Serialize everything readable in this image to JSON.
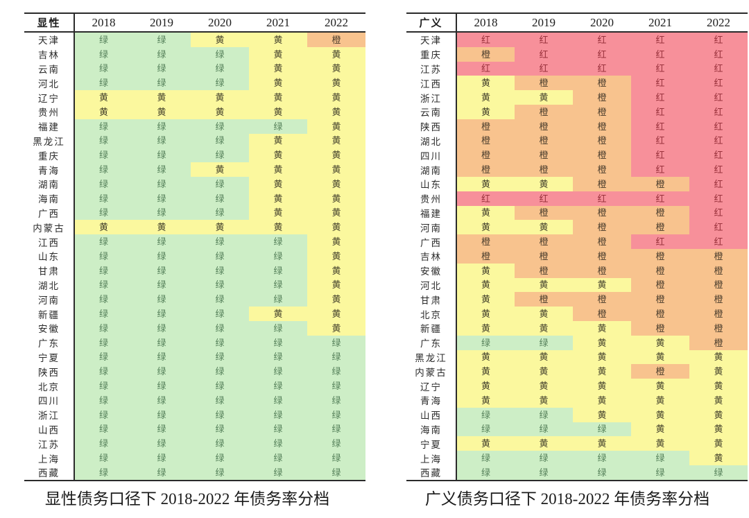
{
  "captions": {
    "left": "显性债务口径下 2018-2022 年债务率分档",
    "right": "广义债务口径下 2018-2022 年债务率分档"
  },
  "value_styles": {
    "绿": {
      "name": "green",
      "bg": "#cdeec6",
      "text": "#55805a"
    },
    "黄": {
      "name": "yellow",
      "bg": "#fbf89e",
      "text": "#45422c"
    },
    "橙": {
      "name": "orange",
      "bg": "#f8c38e",
      "text": "#4a3d2d"
    },
    "红": {
      "name": "red",
      "bg": "#f7909a",
      "text": "#9a323c"
    }
  },
  "chart_data": [
    {
      "type": "heatmap",
      "title": "显性债务口径下 2018-2022 年债务率分档",
      "corner_label": "显性",
      "columns": [
        "2018",
        "2019",
        "2020",
        "2021",
        "2022"
      ],
      "legend_values": [
        "绿",
        "黄",
        "橙",
        "红"
      ],
      "rows": [
        {
          "name": "天津",
          "values": [
            "绿",
            "绿",
            "黄",
            "黄",
            "橙"
          ]
        },
        {
          "name": "吉林",
          "values": [
            "绿",
            "绿",
            "绿",
            "黄",
            "黄"
          ]
        },
        {
          "name": "云南",
          "values": [
            "绿",
            "绿",
            "绿",
            "黄",
            "黄"
          ]
        },
        {
          "name": "河北",
          "values": [
            "绿",
            "绿",
            "绿",
            "黄",
            "黄"
          ]
        },
        {
          "name": "辽宁",
          "values": [
            "黄",
            "黄",
            "黄",
            "黄",
            "黄"
          ]
        },
        {
          "name": "贵州",
          "values": [
            "黄",
            "黄",
            "黄",
            "黄",
            "黄"
          ]
        },
        {
          "name": "福建",
          "values": [
            "绿",
            "绿",
            "绿",
            "绿",
            "黄"
          ]
        },
        {
          "name": "黑龙江",
          "values": [
            "绿",
            "绿",
            "绿",
            "黄",
            "黄"
          ]
        },
        {
          "name": "重庆",
          "values": [
            "绿",
            "绿",
            "绿",
            "黄",
            "黄"
          ]
        },
        {
          "name": "青海",
          "values": [
            "绿",
            "绿",
            "黄",
            "黄",
            "黄"
          ]
        },
        {
          "name": "湖南",
          "values": [
            "绿",
            "绿",
            "绿",
            "黄",
            "黄"
          ]
        },
        {
          "name": "海南",
          "values": [
            "绿",
            "绿",
            "绿",
            "黄",
            "黄"
          ]
        },
        {
          "name": "广西",
          "values": [
            "绿",
            "绿",
            "绿",
            "黄",
            "黄"
          ]
        },
        {
          "name": "内蒙古",
          "values": [
            "黄",
            "黄",
            "黄",
            "黄",
            "黄"
          ]
        },
        {
          "name": "江西",
          "values": [
            "绿",
            "绿",
            "绿",
            "绿",
            "黄"
          ]
        },
        {
          "name": "山东",
          "values": [
            "绿",
            "绿",
            "绿",
            "绿",
            "黄"
          ]
        },
        {
          "name": "甘肃",
          "values": [
            "绿",
            "绿",
            "绿",
            "绿",
            "黄"
          ]
        },
        {
          "name": "湖北",
          "values": [
            "绿",
            "绿",
            "绿",
            "绿",
            "黄"
          ]
        },
        {
          "name": "河南",
          "values": [
            "绿",
            "绿",
            "绿",
            "绿",
            "黄"
          ]
        },
        {
          "name": "新疆",
          "values": [
            "绿",
            "绿",
            "绿",
            "黄",
            "黄"
          ]
        },
        {
          "name": "安徽",
          "values": [
            "绿",
            "绿",
            "绿",
            "绿",
            "黄"
          ]
        },
        {
          "name": "广东",
          "values": [
            "绿",
            "绿",
            "绿",
            "绿",
            "绿"
          ]
        },
        {
          "name": "宁夏",
          "values": [
            "绿",
            "绿",
            "绿",
            "绿",
            "绿"
          ]
        },
        {
          "name": "陕西",
          "values": [
            "绿",
            "绿",
            "绿",
            "绿",
            "绿"
          ]
        },
        {
          "name": "北京",
          "values": [
            "绿",
            "绿",
            "绿",
            "绿",
            "绿"
          ]
        },
        {
          "name": "四川",
          "values": [
            "绿",
            "绿",
            "绿",
            "绿",
            "绿"
          ]
        },
        {
          "name": "浙江",
          "values": [
            "绿",
            "绿",
            "绿",
            "绿",
            "绿"
          ]
        },
        {
          "name": "山西",
          "values": [
            "绿",
            "绿",
            "绿",
            "绿",
            "绿"
          ]
        },
        {
          "name": "江苏",
          "values": [
            "绿",
            "绿",
            "绿",
            "绿",
            "绿"
          ]
        },
        {
          "name": "上海",
          "values": [
            "绿",
            "绿",
            "绿",
            "绿",
            "绿"
          ]
        },
        {
          "name": "西藏",
          "values": [
            "绿",
            "绿",
            "绿",
            "绿",
            "绿"
          ]
        }
      ]
    },
    {
      "type": "heatmap",
      "title": "广义债务口径下 2018-2022 年债务率分档",
      "corner_label": "广义",
      "columns": [
        "2018",
        "2019",
        "2020",
        "2021",
        "2022"
      ],
      "legend_values": [
        "绿",
        "黄",
        "橙",
        "红"
      ],
      "rows": [
        {
          "name": "天津",
          "values": [
            "红",
            "红",
            "红",
            "红",
            "红"
          ]
        },
        {
          "name": "重庆",
          "values": [
            "橙",
            "红",
            "红",
            "红",
            "红"
          ]
        },
        {
          "name": "江苏",
          "values": [
            "红",
            "红",
            "红",
            "红",
            "红"
          ]
        },
        {
          "name": "江西",
          "values": [
            "黄",
            "橙",
            "橙",
            "红",
            "红"
          ]
        },
        {
          "name": "浙江",
          "values": [
            "黄",
            "黄",
            "橙",
            "红",
            "红"
          ]
        },
        {
          "name": "云南",
          "values": [
            "黄",
            "橙",
            "橙",
            "红",
            "红"
          ]
        },
        {
          "name": "陕西",
          "values": [
            "橙",
            "橙",
            "橙",
            "红",
            "红"
          ]
        },
        {
          "name": "湖北",
          "values": [
            "橙",
            "橙",
            "橙",
            "红",
            "红"
          ]
        },
        {
          "name": "四川",
          "values": [
            "橙",
            "橙",
            "橙",
            "红",
            "红"
          ]
        },
        {
          "name": "湖南",
          "values": [
            "橙",
            "橙",
            "橙",
            "红",
            "红"
          ]
        },
        {
          "name": "山东",
          "values": [
            "黄",
            "黄",
            "橙",
            "橙",
            "红"
          ]
        },
        {
          "name": "贵州",
          "values": [
            "红",
            "红",
            "红",
            "红",
            "红"
          ]
        },
        {
          "name": "福建",
          "values": [
            "黄",
            "橙",
            "橙",
            "橙",
            "红"
          ]
        },
        {
          "name": "河南",
          "values": [
            "黄",
            "黄",
            "橙",
            "橙",
            "红"
          ]
        },
        {
          "name": "广西",
          "values": [
            "橙",
            "橙",
            "橙",
            "红",
            "红"
          ]
        },
        {
          "name": "吉林",
          "values": [
            "橙",
            "橙",
            "橙",
            "橙",
            "橙"
          ]
        },
        {
          "name": "安徽",
          "values": [
            "黄",
            "橙",
            "橙",
            "橙",
            "橙"
          ]
        },
        {
          "name": "河北",
          "values": [
            "黄",
            "黄",
            "黄",
            "橙",
            "橙"
          ]
        },
        {
          "name": "甘肃",
          "values": [
            "黄",
            "橙",
            "橙",
            "橙",
            "橙"
          ]
        },
        {
          "name": "北京",
          "values": [
            "黄",
            "黄",
            "橙",
            "橙",
            "橙"
          ]
        },
        {
          "name": "新疆",
          "values": [
            "黄",
            "黄",
            "黄",
            "橙",
            "橙"
          ]
        },
        {
          "name": "广东",
          "values": [
            "绿",
            "绿",
            "黄",
            "黄",
            "橙"
          ]
        },
        {
          "name": "黑龙江",
          "values": [
            "黄",
            "黄",
            "黄",
            "黄",
            "黄"
          ]
        },
        {
          "name": "内蒙古",
          "values": [
            "黄",
            "黄",
            "黄",
            "橙",
            "黄"
          ]
        },
        {
          "name": "辽宁",
          "values": [
            "黄",
            "黄",
            "黄",
            "黄",
            "黄"
          ]
        },
        {
          "name": "青海",
          "values": [
            "黄",
            "黄",
            "黄",
            "黄",
            "黄"
          ]
        },
        {
          "name": "山西",
          "values": [
            "绿",
            "绿",
            "黄",
            "黄",
            "黄"
          ]
        },
        {
          "name": "海南",
          "values": [
            "绿",
            "绿",
            "绿",
            "黄",
            "黄"
          ]
        },
        {
          "name": "宁夏",
          "values": [
            "黄",
            "黄",
            "黄",
            "黄",
            "黄"
          ]
        },
        {
          "name": "上海",
          "values": [
            "绿",
            "绿",
            "绿",
            "绿",
            "黄"
          ]
        },
        {
          "name": "西藏",
          "values": [
            "绿",
            "绿",
            "绿",
            "绿",
            "绿"
          ]
        }
      ]
    }
  ]
}
